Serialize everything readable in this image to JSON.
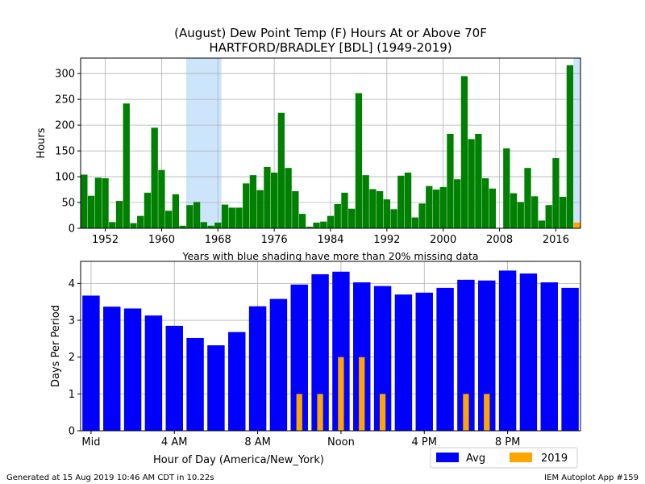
{
  "title_line1": "(August) Dew Point Temp (F) Hours At or Above 70F",
  "title_line2": "HARTFORD/BRADLEY [BDL] (1949-2019)",
  "shading_note": "Years with blue shading have more than 20% missing data",
  "footer_left": "Generated at 15 Aug 2019 10:46 AM CDT in 10.22s",
  "footer_right": "IEM Autoplot App #159",
  "colors": {
    "annual_bar": "#008000",
    "current_bar": "#ffa500",
    "avg_bar": "#0000ff",
    "missing_shade": "#cce5fb",
    "grid": "#b0b0b0"
  },
  "chart_data": [
    {
      "type": "bar",
      "ylabel": "Hours",
      "xlabel": "",
      "xlim": [
        1948.5,
        2019.5
      ],
      "ylim": [
        0,
        330
      ],
      "xticks": [
        1952,
        1960,
        1968,
        1976,
        1984,
        1992,
        2000,
        2008,
        2016
      ],
      "yticks": [
        0,
        50,
        100,
        150,
        200,
        250,
        300
      ],
      "shaded_years": [
        [
          1964,
          1968
        ],
        [
          2019,
          2019
        ]
      ],
      "series": [
        {
          "name": "",
          "x": [
            1949,
            1950,
            1951,
            1952,
            1953,
            1954,
            1955,
            1956,
            1957,
            1958,
            1959,
            1960,
            1961,
            1962,
            1963,
            1964,
            1965,
            1966,
            1967,
            1968,
            1969,
            1970,
            1971,
            1972,
            1973,
            1974,
            1975,
            1976,
            1977,
            1978,
            1979,
            1980,
            1981,
            1982,
            1983,
            1984,
            1985,
            1986,
            1987,
            1988,
            1989,
            1990,
            1991,
            1992,
            1993,
            1994,
            1995,
            1996,
            1997,
            1998,
            1999,
            2000,
            2001,
            2002,
            2003,
            2004,
            2005,
            2006,
            2007,
            2008,
            2009,
            2010,
            2011,
            2012,
            2013,
            2014,
            2015,
            2016,
            2017,
            2018
          ],
          "values": [
            104,
            63,
            98,
            97,
            12,
            53,
            242,
            10,
            24,
            69,
            195,
            113,
            34,
            66,
            5,
            45,
            51,
            12,
            5,
            11,
            46,
            40,
            40,
            87,
            103,
            74,
            119,
            108,
            224,
            117,
            72,
            28,
            3,
            11,
            13,
            24,
            47,
            69,
            38,
            262,
            103,
            76,
            72,
            56,
            37,
            102,
            108,
            21,
            48,
            82,
            75,
            80,
            183,
            95,
            295,
            173,
            183,
            97,
            77,
            0,
            155,
            68,
            51,
            117,
            62,
            15,
            45,
            136,
            61,
            316
          ]
        },
        {
          "name": "2019",
          "x": [
            2019
          ],
          "values": [
            11
          ]
        }
      ]
    },
    {
      "type": "bar",
      "xlabel": "Hour of Day (America/New_York)",
      "ylabel": "Days Per Period",
      "ylim": [
        0,
        4.6
      ],
      "yticks": [
        0,
        1,
        2,
        3,
        4
      ],
      "xtick_labels": [
        {
          "hour": 0,
          "label": "Mid"
        },
        {
          "hour": 4,
          "label": "4 AM"
        },
        {
          "hour": 8,
          "label": "8 AM"
        },
        {
          "hour": 12,
          "label": "Noon"
        },
        {
          "hour": 16,
          "label": "4 PM"
        },
        {
          "hour": 20,
          "label": "8 PM"
        }
      ],
      "hours": [
        0,
        1,
        2,
        3,
        4,
        5,
        6,
        7,
        8,
        9,
        10,
        11,
        12,
        13,
        14,
        15,
        16,
        17,
        18,
        19,
        20,
        21,
        22,
        23
      ],
      "series": [
        {
          "name": "Avg",
          "values": [
            3.67,
            3.37,
            3.32,
            3.13,
            2.85,
            2.52,
            2.32,
            2.68,
            3.38,
            3.58,
            3.97,
            4.25,
            4.32,
            4.03,
            3.93,
            3.7,
            3.75,
            3.88,
            4.1,
            4.08,
            4.35,
            4.27,
            4.03,
            3.88
          ]
        },
        {
          "name": "2019",
          "values": [
            0,
            0,
            0,
            0,
            0,
            0,
            0,
            0,
            0,
            0,
            1,
            1,
            2,
            2,
            1,
            0,
            0,
            0,
            1,
            1,
            0,
            0,
            0,
            0
          ]
        }
      ],
      "legend": {
        "position": "bottom-right"
      }
    }
  ]
}
